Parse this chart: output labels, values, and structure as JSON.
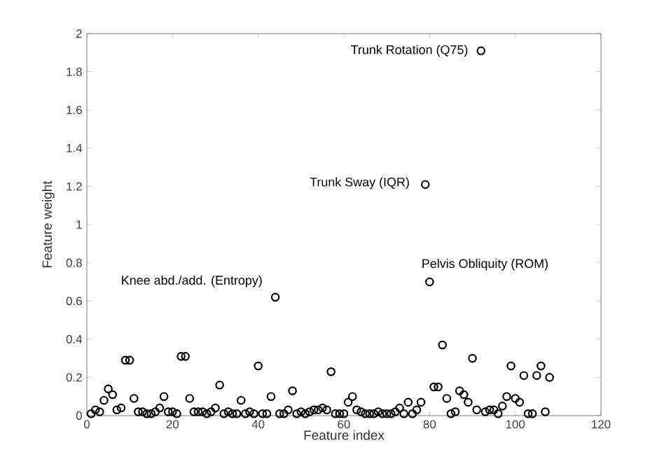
{
  "chart_data": {
    "type": "scatter",
    "xlabel": "Feature index",
    "ylabel": "Feature weight",
    "x": [
      1,
      2,
      3,
      4,
      5,
      6,
      7,
      8,
      9,
      10,
      11,
      12,
      13,
      14,
      15,
      16,
      17,
      18,
      19,
      20,
      21,
      22,
      23,
      24,
      25,
      26,
      27,
      28,
      29,
      30,
      31,
      32,
      33,
      34,
      35,
      36,
      37,
      38,
      39,
      40,
      41,
      42,
      43,
      44,
      45,
      46,
      47,
      48,
      49,
      50,
      51,
      52,
      53,
      54,
      55,
      56,
      57,
      58,
      59,
      60,
      61,
      62,
      63,
      64,
      65,
      66,
      67,
      68,
      69,
      70,
      71,
      72,
      73,
      74,
      75,
      76,
      77,
      78,
      79,
      80,
      81,
      82,
      83,
      84,
      85,
      86,
      87,
      88,
      89,
      90,
      91,
      92,
      93,
      94,
      95,
      96,
      97,
      98,
      99,
      100,
      101,
      102,
      103,
      104,
      105,
      106,
      107,
      108
    ],
    "values": [
      0.01,
      0.03,
      0.02,
      0.08,
      0.14,
      0.11,
      0.03,
      0.04,
      0.29,
      0.29,
      0.09,
      0.02,
      0.02,
      0.01,
      0.01,
      0.02,
      0.04,
      0.1,
      0.02,
      0.02,
      0.01,
      0.31,
      0.31,
      0.09,
      0.02,
      0.02,
      0.02,
      0.01,
      0.02,
      0.04,
      0.16,
      0.01,
      0.02,
      0.01,
      0.01,
      0.08,
      0.01,
      0.02,
      0.01,
      0.26,
      0.01,
      0.01,
      0.1,
      0.62,
      0.01,
      0.01,
      0.03,
      0.13,
      0.01,
      0.02,
      0.01,
      0.02,
      0.03,
      0.03,
      0.04,
      0.03,
      0.23,
      0.01,
      0.01,
      0.01,
      0.07,
      0.1,
      0.03,
      0.02,
      0.01,
      0.01,
      0.01,
      0.02,
      0.01,
      0.01,
      0.01,
      0.02,
      0.04,
      0.01,
      0.07,
      0.01,
      0.03,
      0.07,
      1.21,
      0.7,
      0.15,
      0.15,
      0.37,
      0.09,
      0.01,
      0.02,
      0.13,
      0.11,
      0.07,
      0.3,
      0.03,
      1.91,
      0.02,
      0.03,
      0.03,
      0.01,
      0.05,
      0.1,
      0.26,
      0.09,
      0.07,
      0.21,
      0.01,
      0.01,
      0.21,
      0.26,
      0.02,
      0.2
    ],
    "color": "#000000",
    "marker": "circle",
    "xlim": [
      0,
      120
    ],
    "xticks": [
      0,
      20,
      40,
      60,
      80,
      100,
      120
    ],
    "ylim": [
      0,
      2
    ],
    "yticks": [
      0,
      0.2,
      0.4,
      0.6,
      0.8,
      1,
      1.2,
      1.4,
      1.6,
      1.8,
      2
    ],
    "grid": false,
    "annotations": [
      {
        "text": "Trunk Rotation (Q75)",
        "x": 92,
        "y": 1.91
      },
      {
        "text": "Trunk Sway (IQR)",
        "x": 79,
        "y": 1.21
      },
      {
        "text": "Pelvis Obliquity (ROM)",
        "x": 80,
        "y": 0.7
      },
      {
        "text": "Knee abd./add. (Entropy)",
        "x": 44,
        "y": 0.62
      }
    ]
  }
}
